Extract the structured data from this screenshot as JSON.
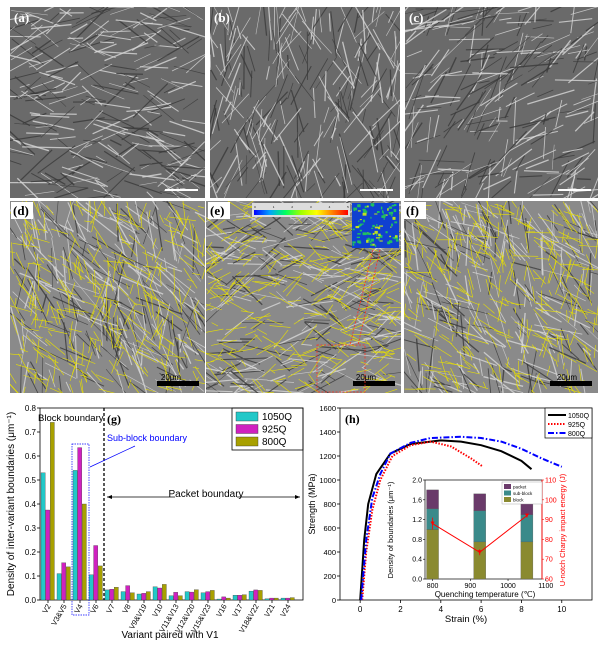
{
  "panels": {
    "a": {
      "label": "(a)",
      "scale_bar": "5 μm"
    },
    "b": {
      "label": "(b)",
      "scale_bar": "5 μm"
    },
    "c": {
      "label": "(c)",
      "scale_bar": "5 μm"
    },
    "d": {
      "label": "(d)",
      "scale_bar": "20μm"
    },
    "e": {
      "label": "(e)",
      "scale_bar": "20μm",
      "colorbar_ticks": [
        "0",
        "1",
        "2",
        "3",
        "4",
        "5"
      ]
    },
    "f": {
      "label": "(f)",
      "scale_bar": "20μm"
    }
  },
  "colors": {
    "c1050": "#22c8c8",
    "c925": "#d020c0",
    "c800": "#a8a000",
    "overlay": "#e8e000",
    "red": "#ff0000",
    "blue": "#0000ff"
  },
  "chart_data": [
    {
      "type": "bar",
      "panel_label": "(g)",
      "ylabel": "Density of inter-variant boundaries (μm⁻¹)",
      "xlabel": "Variant paired with V1",
      "ylim": [
        0,
        0.8
      ],
      "yticks": [
        "0.0",
        "0.1",
        "0.2",
        "0.3",
        "0.4",
        "0.5",
        "0.6",
        "0.7",
        "0.8"
      ],
      "categories": [
        "V2",
        "V3&V5",
        "V4",
        "V6",
        "V7",
        "V8",
        "V9&V19",
        "V10",
        "V11&V13",
        "V12&V20",
        "V15&V23",
        "V16",
        "V17",
        "V18&V22",
        "V21",
        "V24"
      ],
      "series": [
        {
          "name": "1050Q",
          "values": [
            0.53,
            0.11,
            0.54,
            0.105,
            0.042,
            0.035,
            0.025,
            0.055,
            0.018,
            0.035,
            0.03,
            0.004,
            0.02,
            0.037,
            0.005,
            0.008
          ]
        },
        {
          "name": "925Q",
          "values": [
            0.375,
            0.155,
            0.635,
            0.227,
            0.045,
            0.06,
            0.028,
            0.05,
            0.032,
            0.033,
            0.035,
            0.013,
            0.02,
            0.042,
            0.008,
            0.008
          ]
        },
        {
          "name": "800Q",
          "values": [
            0.74,
            0.138,
            0.4,
            0.142,
            0.053,
            0.03,
            0.035,
            0.065,
            0.018,
            0.043,
            0.04,
            0.008,
            0.022,
            0.04,
            0.008,
            0.01
          ]
        }
      ],
      "annotations": {
        "block": "Block boundary",
        "subblock": "Sub-block boundary",
        "packet": "Packet boundary"
      },
      "legend": "top-right"
    },
    {
      "type": "line",
      "panel_label": "(h)",
      "xlabel": "Strain (%)",
      "ylabel": "Strength (MPa)",
      "xlim": [
        -1,
        11.5
      ],
      "ylim": [
        0,
        1600
      ],
      "xticks": [
        0,
        2,
        4,
        6,
        8,
        10
      ],
      "yticks": [
        0,
        200,
        400,
        600,
        800,
        1000,
        1200,
        1400,
        1600
      ],
      "legend": "top-right",
      "series": [
        {
          "name": "1050Q",
          "style": "solid",
          "color": "#000000",
          "points": [
            [
              0,
              0
            ],
            [
              0.2,
              500
            ],
            [
              0.4,
              800
            ],
            [
              0.8,
              1050
            ],
            [
              1.5,
              1220
            ],
            [
              2.5,
              1300
            ],
            [
              4,
              1330
            ],
            [
              5,
              1320
            ],
            [
              6,
              1290
            ],
            [
              7,
              1240
            ],
            [
              8,
              1160
            ],
            [
              8.5,
              1090
            ]
          ]
        },
        {
          "name": "925Q",
          "style": "dotted",
          "color": "#ff0000",
          "points": [
            [
              0.1,
              0
            ],
            [
              0.3,
              400
            ],
            [
              0.6,
              750
            ],
            [
              1,
              1000
            ],
            [
              1.6,
              1200
            ],
            [
              2.5,
              1290
            ],
            [
              3.5,
              1320
            ],
            [
              4.5,
              1280
            ],
            [
              5.5,
              1180
            ],
            [
              6.1,
              1110
            ]
          ]
        },
        {
          "name": "800Q",
          "style": "dashdot",
          "color": "#0000ff",
          "points": [
            [
              0.05,
              0
            ],
            [
              0.3,
              500
            ],
            [
              0.6,
              850
            ],
            [
              1,
              1050
            ],
            [
              1.5,
              1220
            ],
            [
              2.5,
              1310
            ],
            [
              3.5,
              1350
            ],
            [
              5,
              1360
            ],
            [
              6,
              1350
            ],
            [
              7,
              1320
            ],
            [
              8,
              1260
            ],
            [
              9,
              1180
            ],
            [
              10,
              1110
            ]
          ]
        }
      ],
      "inset": {
        "type": "stacked-bar+line",
        "xlabel": "Quenching temperature (℃)",
        "ylabel": "Density of boundaries (μm⁻¹)",
        "y2label": "U-notch Charpy impact energy (J)",
        "xlim": [
          780,
          1090
        ],
        "ylim": [
          0,
          2.0
        ],
        "y2lim": [
          60,
          110
        ],
        "xticks": [
          800,
          900,
          1000,
          1100
        ],
        "yticks": [
          "0.0",
          "0.4",
          "0.8",
          "1.2",
          "1.6",
          "2.0"
        ],
        "y2ticks": [
          60,
          70,
          80,
          90,
          100,
          110
        ],
        "x": [
          800,
          925,
          1050
        ],
        "stack": [
          {
            "name": "block",
            "color": "#8a8a30",
            "values": [
              1.0,
              0.75,
              0.75
            ]
          },
          {
            "name": "sub-block",
            "color": "#3a8a8a",
            "values": [
              0.42,
              0.63,
              0.55
            ]
          },
          {
            "name": "packet",
            "color": "#6a3a6a",
            "values": [
              0.38,
              0.34,
              0.3
            ]
          }
        ],
        "impact_energy": [
          88,
          73.5,
          92
        ],
        "impact_error": [
          3,
          1.5,
          1
        ]
      }
    }
  ]
}
